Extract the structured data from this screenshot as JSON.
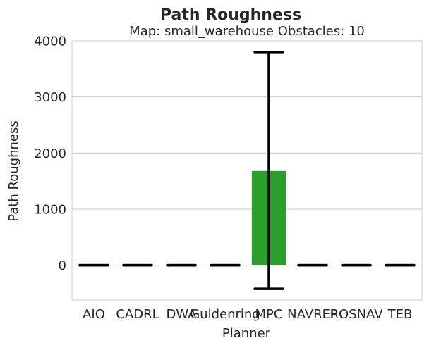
{
  "chart_data": {
    "type": "bar",
    "title": "Path Roughness",
    "subtitle": "Map: small_warehouse Obstacles: 10",
    "xlabel": "Planner",
    "ylabel": "Path Roughness",
    "categories": [
      "AIO",
      "CADRL",
      "DWA",
      "Guldenring",
      "MPC",
      "NAVREP",
      "ROSNAV",
      "TEB"
    ],
    "values": [
      0,
      0,
      0,
      0,
      1680,
      0,
      0,
      0
    ],
    "error_low": [
      0,
      0,
      0,
      0,
      -420,
      0,
      0,
      0
    ],
    "error_high": [
      0,
      0,
      0,
      0,
      3800,
      0,
      0,
      0
    ],
    "bar_colors": [
      "#1f77b4",
      "#ff7f0e",
      "#2ca02c",
      "#d62728",
      "#2ca02c",
      "#8c564b",
      "#e377c2",
      "#7f7f7f"
    ],
    "ylim": [
      -620,
      4000
    ],
    "yticks": [
      0,
      1000,
      2000,
      3000,
      4000
    ],
    "grid": true,
    "zero_line": "dashed"
  }
}
